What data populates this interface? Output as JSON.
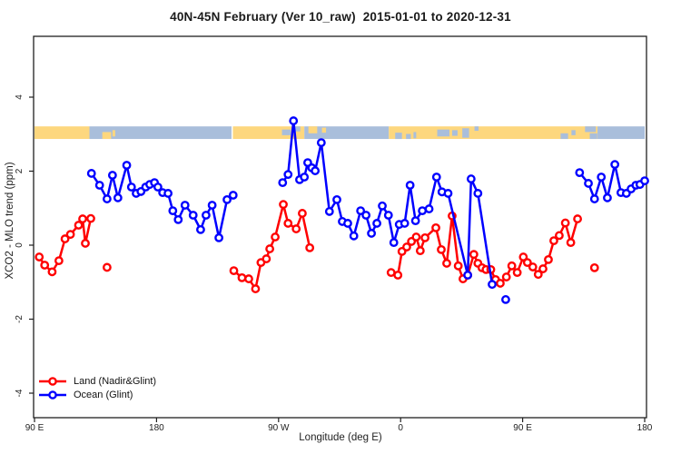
{
  "header": {
    "title": "40N-45N February (Ver 10_raw)  2015-01-01 to 2020-12-31"
  },
  "legend": {
    "items": [
      "Land (Nadir&Glint)",
      "Ocean (Glint)"
    ]
  },
  "colors": {
    "land_series": "#ff0000",
    "ocean_series": "#0000ff",
    "band_land": "#fdd77e",
    "band_ocean": "#a9bedb",
    "frame": "#1f1f1f",
    "tick_text": "#222222"
  },
  "chart_data": {
    "type": "line",
    "title": "40N-45N February (Ver 10_raw)  2015-01-01 to 2020-12-31",
    "xlabel": "Longitude (deg E)",
    "ylabel": "XCO2 - MLO trend (ppm)",
    "xlim": [
      90,
      540
    ],
    "ylim": [
      -4.6,
      5.6
    ],
    "grid": false,
    "legend_position": "bottom-left",
    "x_ticks": [
      {
        "v": 90,
        "label": "90 E"
      },
      {
        "v": 180,
        "label": "180"
      },
      {
        "v": 270,
        "label": "90 W"
      },
      {
        "v": 360,
        "label": "0"
      },
      {
        "v": 450,
        "label": "90 E"
      },
      {
        "v": 540,
        "label": "180"
      }
    ],
    "y_ticks": [
      {
        "v": -4,
        "label": "-4"
      },
      {
        "v": -2,
        "label": "-2"
      },
      {
        "v": 0,
        "label": "0"
      },
      {
        "v": 2,
        "label": "2"
      },
      {
        "v": 4,
        "label": "4"
      }
    ],
    "series": [
      {
        "name": "Land (Nadir&Glint)",
        "color": "#ff0000",
        "marker": "open-circle",
        "segments": [
          [
            [
              93.5,
              -0.32
            ],
            [
              97.5,
              -0.54
            ],
            [
              103,
              -0.72
            ],
            [
              108,
              -0.42
            ],
            [
              112.5,
              0.17
            ],
            [
              116.5,
              0.29
            ],
            [
              122.5,
              0.54
            ],
            [
              125.5,
              0.71
            ],
            [
              127.5,
              0.05
            ],
            [
              131.5,
              0.72
            ]
          ],
          [
            [
              237,
              -0.69
            ],
            [
              243,
              -0.88
            ],
            [
              248,
              -0.91
            ],
            [
              253,
              -1.18
            ],
            [
              257,
              -0.47
            ],
            [
              261,
              -0.37
            ],
            [
              263.5,
              -0.1
            ],
            [
              267.5,
              0.22
            ],
            [
              273.5,
              1.1
            ],
            [
              277,
              0.59
            ],
            [
              283,
              0.44
            ],
            [
              287.5,
              0.86
            ],
            [
              293,
              -0.07
            ]
          ],
          [
            [
              353,
              -0.74
            ],
            [
              358,
              -0.81
            ],
            [
              361,
              -0.17
            ],
            [
              364.5,
              -0.05
            ],
            [
              368,
              0.1
            ],
            [
              371.5,
              0.22
            ],
            [
              374.5,
              -0.15
            ],
            [
              378,
              0.2
            ],
            [
              386,
              0.47
            ],
            [
              390,
              -0.12
            ],
            [
              394,
              -0.49
            ],
            [
              398,
              0.79
            ],
            [
              402.5,
              -0.56
            ],
            [
              406,
              -0.91
            ],
            [
              409.5,
              -0.81
            ],
            [
              414,
              -0.25
            ],
            [
              417,
              -0.49
            ],
            [
              420,
              -0.61
            ],
            [
              423,
              -0.66
            ],
            [
              426.5,
              -0.66
            ],
            [
              430,
              -0.93
            ],
            [
              433.5,
              -1.03
            ],
            [
              438,
              -0.86
            ],
            [
              442,
              -0.56
            ],
            [
              446,
              -0.74
            ],
            [
              450.5,
              -0.32
            ],
            [
              453.5,
              -0.47
            ],
            [
              457.5,
              -0.59
            ],
            [
              461.5,
              -0.79
            ],
            [
              465,
              -0.64
            ],
            [
              469,
              -0.39
            ],
            [
              473,
              0.12
            ],
            [
              477,
              0.26
            ],
            [
              481.5,
              0.6
            ],
            [
              485.5,
              0.07
            ],
            [
              490.5,
              0.71
            ]
          ]
        ],
        "isolated_points": [
          [
            143.5,
            -0.6
          ],
          [
            503,
            -0.61
          ]
        ]
      },
      {
        "name": "Ocean (Glint)",
        "color": "#0000ff",
        "marker": "open-circle",
        "segments": [
          [
            [
              132,
              1.94
            ],
            [
              138,
              1.62
            ],
            [
              143.5,
              1.25
            ],
            [
              147.5,
              1.89
            ],
            [
              151.5,
              1.28
            ],
            [
              158,
              2.16
            ],
            [
              161.5,
              1.57
            ],
            [
              165,
              1.4
            ],
            [
              168.5,
              1.45
            ],
            [
              172,
              1.57
            ],
            [
              175,
              1.64
            ],
            [
              178.5,
              1.69
            ],
            [
              181,
              1.57
            ],
            [
              184.5,
              1.42
            ],
            [
              188.5,
              1.4
            ],
            [
              192,
              0.93
            ],
            [
              196,
              0.69
            ],
            [
              201,
              1.08
            ],
            [
              207,
              0.81
            ],
            [
              212.5,
              0.42
            ],
            [
              216.5,
              0.81
            ],
            [
              221,
              1.08
            ],
            [
              226,
              0.2
            ],
            [
              232,
              1.23
            ],
            [
              236.5,
              1.35
            ]
          ],
          [
            [
              273,
              1.69
            ],
            [
              277,
              1.91
            ],
            [
              281,
              3.36
            ],
            [
              285.5,
              1.77
            ],
            [
              289,
              1.84
            ],
            [
              291.5,
              2.23
            ],
            [
              294.5,
              2.09
            ],
            [
              297,
              2.01
            ],
            [
              301.5,
              2.77
            ],
            [
              307.5,
              0.91
            ],
            [
              313,
              1.23
            ],
            [
              317,
              0.64
            ],
            [
              321,
              0.59
            ],
            [
              325.5,
              0.25
            ],
            [
              330.5,
              0.93
            ],
            [
              334.5,
              0.81
            ],
            [
              338.5,
              0.32
            ],
            [
              342.5,
              0.59
            ],
            [
              346.5,
              1.06
            ],
            [
              351,
              0.81
            ],
            [
              355,
              0.07
            ],
            [
              359,
              0.56
            ],
            [
              363,
              0.59
            ],
            [
              367,
              1.62
            ],
            [
              371,
              0.66
            ],
            [
              376,
              0.93
            ],
            [
              381,
              0.98
            ],
            [
              386.5,
              1.84
            ],
            [
              390.5,
              1.44
            ],
            [
              395,
              1.4
            ],
            [
              409.5,
              -0.81
            ],
            [
              412,
              1.79
            ],
            [
              417,
              1.4
            ],
            [
              427.5,
              -1.06
            ]
          ],
          [
            [
              492,
              1.96
            ],
            [
              498.5,
              1.67
            ],
            [
              503,
              1.25
            ],
            [
              508,
              1.84
            ],
            [
              512.5,
              1.28
            ],
            [
              518,
              2.18
            ],
            [
              522.5,
              1.42
            ],
            [
              526.5,
              1.4
            ],
            [
              530,
              1.52
            ],
            [
              533.5,
              1.62
            ],
            [
              536.5,
              1.64
            ],
            [
              540,
              1.74
            ]
          ]
        ],
        "isolated_points": [
          [
            437.5,
            -1.47
          ]
        ]
      }
    ],
    "map_band": {
      "description": "coastline strip at 40N-45N drawn across the plot near y=3 ppm",
      "ppm_top": 3.21,
      "ppm_bottom": 2.87,
      "base_segments": [
        {
          "from": 90,
          "to": 130.5,
          "t": "land"
        },
        {
          "from": 130.5,
          "to": 235.3,
          "t": "ocean"
        },
        {
          "from": 236.3,
          "to": 289,
          "t": "land"
        },
        {
          "from": 289,
          "to": 351.3,
          "t": "ocean"
        },
        {
          "from": 351.3,
          "to": 505.2,
          "t": "land"
        },
        {
          "from": 505.2,
          "to": 540,
          "t": "ocean"
        }
      ],
      "speckles": [
        {
          "from": 140,
          "to": 146.5,
          "t": "land",
          "f0": 0.45,
          "f1": 1
        },
        {
          "from": 147.5,
          "to": 149.5,
          "t": "land",
          "f0": 0.3,
          "f1": 0.8
        },
        {
          "from": 272.5,
          "to": 279,
          "t": "ocean",
          "f0": 0.25,
          "f1": 0.7
        },
        {
          "from": 282,
          "to": 286,
          "t": "ocean",
          "f0": 0,
          "f1": 0.4
        },
        {
          "from": 292,
          "to": 298.5,
          "t": "land",
          "f0": 0,
          "f1": 0.55
        },
        {
          "from": 302,
          "to": 305,
          "t": "land",
          "f0": 0.1,
          "f1": 0.5
        },
        {
          "from": 356,
          "to": 361,
          "t": "ocean",
          "f0": 0.5,
          "f1": 1
        },
        {
          "from": 364,
          "to": 367.5,
          "t": "ocean",
          "f0": 0.6,
          "f1": 1
        },
        {
          "from": 369.5,
          "to": 371.5,
          "t": "ocean",
          "f0": 0.45,
          "f1": 0.95
        },
        {
          "from": 387,
          "to": 396,
          "t": "ocean",
          "f0": 0.25,
          "f1": 0.8
        },
        {
          "from": 398,
          "to": 402,
          "t": "ocean",
          "f0": 0.3,
          "f1": 0.75
        },
        {
          "from": 405.5,
          "to": 410.5,
          "t": "ocean",
          "f0": 0.15,
          "f1": 0.9
        },
        {
          "from": 414.5,
          "to": 417.5,
          "t": "ocean",
          "f0": 0,
          "f1": 0.35
        },
        {
          "from": 478,
          "to": 483.5,
          "t": "ocean",
          "f0": 0.55,
          "f1": 1
        },
        {
          "from": 486,
          "to": 489,
          "t": "ocean",
          "f0": 0.3,
          "f1": 0.7
        },
        {
          "from": 496,
          "to": 504,
          "t": "ocean",
          "f0": 0,
          "f1": 0.45
        },
        {
          "from": 499.5,
          "to": 505,
          "t": "ocean",
          "f0": 0.55,
          "f1": 1
        }
      ]
    }
  }
}
